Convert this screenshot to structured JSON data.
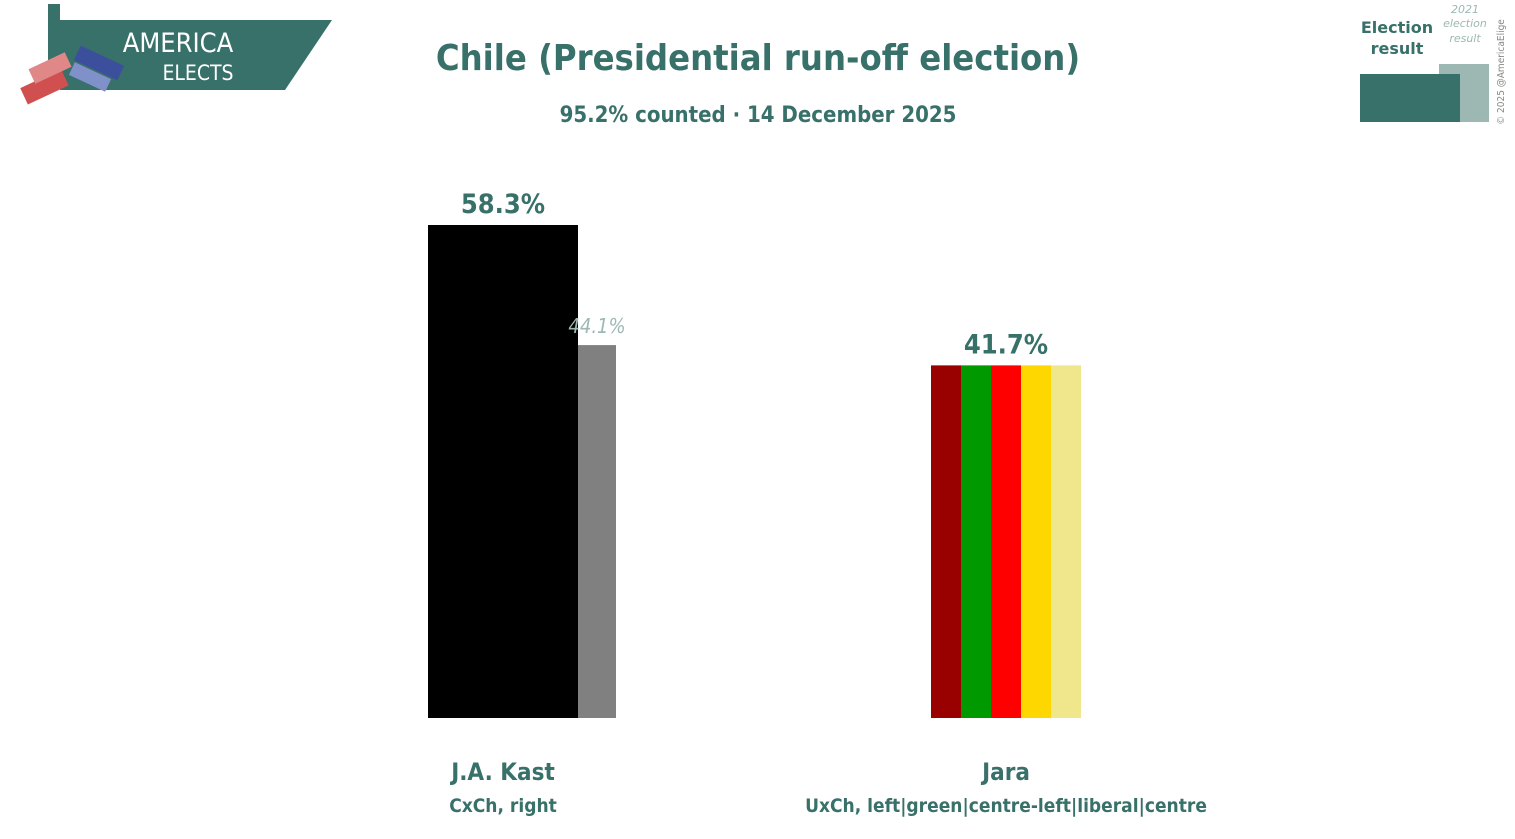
{
  "logo": {
    "line1": "AMERICA",
    "line2": "ELECTS"
  },
  "copyright": "© 2025 @AmericaElige",
  "chart_data": {
    "type": "bar",
    "title": "Chile (Presidential run-off election)",
    "subtitle": "95.2% counted · 14 December 2025",
    "categories": [
      "J.A. Kast",
      "Jara"
    ],
    "category_sublabels": [
      "CxCh, right",
      "UxCh, left|green|centre-left|liberal|centre"
    ],
    "series": [
      {
        "name": "Election result",
        "color": "#38706a",
        "values": [
          58.3,
          41.7
        ],
        "value_labels": [
          "58.3%",
          "41.7%"
        ],
        "bar_colors": [
          [
            "#000000"
          ],
          [
            "#990000",
            "#009900",
            "#ff0000",
            "#ffd700",
            "#f0e68c"
          ]
        ]
      },
      {
        "name": "2021 election result",
        "color": "#9db8b3",
        "values": [
          44.1,
          null
        ],
        "value_labels": [
          "44.1%",
          null
        ],
        "bar_colors": [
          [
            "#808080"
          ],
          null
        ]
      }
    ]
  }
}
